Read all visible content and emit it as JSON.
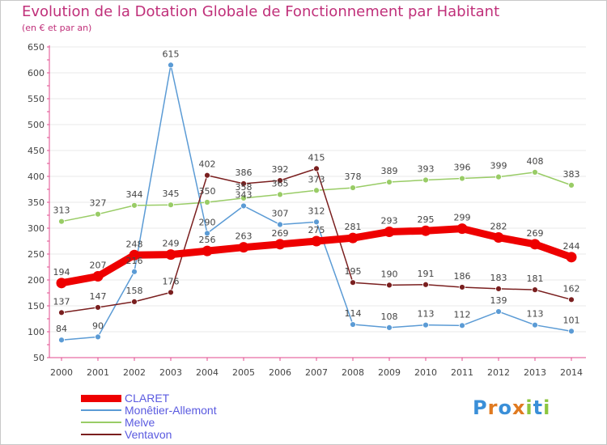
{
  "header": {
    "title": "Evolution de la Dotation Globale de Fonctionnement par Habitant",
    "subtitle": "(en € et par an)"
  },
  "colors": {
    "title": "#c0307a",
    "axis": "#e14a8c",
    "grid": "#e8e8e8",
    "legend_text": "#5a5ae0"
  },
  "logo": {
    "text": "Proxiti",
    "letters": [
      {
        "ch": "P",
        "color": "#3a8fd8"
      },
      {
        "ch": "r",
        "color": "#e07a20"
      },
      {
        "ch": "o",
        "color": "#3a8fd8"
      },
      {
        "ch": "x",
        "color": "#e07a20"
      },
      {
        "ch": "i",
        "color": "#8cc63f"
      },
      {
        "ch": "t",
        "color": "#3a8fd8"
      },
      {
        "ch": "i",
        "color": "#8cc63f"
      }
    ]
  },
  "chart_data": {
    "type": "line",
    "title": "Evolution de la Dotation Globale de Fonctionnement par Habitant",
    "subtitle": "(en € et par an)",
    "x": [
      "2000",
      "2001",
      "2002",
      "2003",
      "2004",
      "2005",
      "2006",
      "2007",
      "2008",
      "2009",
      "2010",
      "2011",
      "2012",
      "2013",
      "2014"
    ],
    "ylim": [
      50,
      650
    ],
    "yticks": [
      50,
      100,
      150,
      200,
      250,
      300,
      350,
      400,
      450,
      500,
      550,
      600,
      650
    ],
    "grid": true,
    "legend_position": "bottom-left",
    "series": [
      {
        "name": "CLARET",
        "color": "#ee0000",
        "emphasis": true,
        "values": [
          194,
          207,
          248,
          249,
          256,
          263,
          269,
          275,
          281,
          293,
          295,
          299,
          282,
          269,
          244
        ]
      },
      {
        "name": "Monêtier-Allemont",
        "color": "#5b9bd5",
        "emphasis": false,
        "values": [
          84,
          90,
          216,
          615,
          290,
          343,
          307,
          312,
          114,
          108,
          113,
          112,
          139,
          113,
          101
        ],
        "printed_labels": [
          "84",
          "90",
          "216",
          "615",
          "290",
          "343",
          "307",
          "312",
          "114",
          "108",
          "113",
          "112",
          "139",
          "113",
          "101"
        ]
      },
      {
        "name": "Melve",
        "color": "#99cc66",
        "emphasis": false,
        "values": [
          313,
          327,
          344,
          345,
          350,
          358,
          365,
          373,
          378,
          389,
          393,
          396,
          399,
          408,
          383
        ],
        "printed_labels": [
          "313",
          "327",
          "344",
          "345",
          "350",
          "358",
          "365",
          "373",
          "378",
          "389",
          "393",
          "396",
          "399",
          "408",
          "383"
        ]
      },
      {
        "name": "Ventavon",
        "color": "#7a1f1f",
        "emphasis": false,
        "values": [
          137,
          147,
          158,
          176,
          402,
          386,
          392,
          415,
          195,
          190,
          191,
          186,
          183,
          181,
          162
        ],
        "printed_labels": [
          "137",
          "147",
          "158",
          "176",
          "402",
          "386",
          "392",
          "415",
          "195",
          "190",
          "191",
          "186",
          "183",
          "181",
          "162"
        ]
      }
    ]
  }
}
